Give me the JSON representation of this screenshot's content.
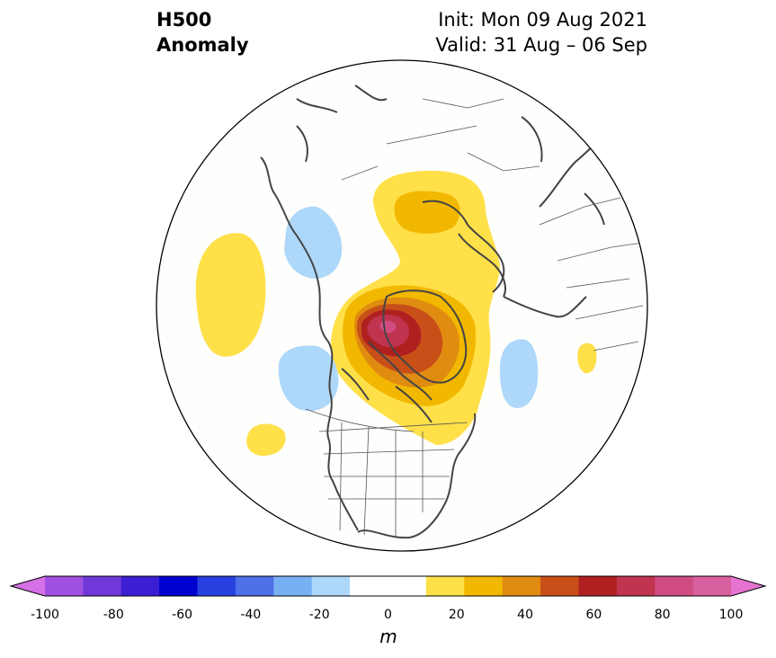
{
  "title": {
    "left_line1": "H500",
    "left_line2": "Anomaly",
    "right_line1": "Init: Mon 09 Aug 2021",
    "right_line2": "Valid: 31 Aug – 06 Sep"
  },
  "map": {
    "projection": "north-polar-stereographic",
    "variable": "500 hPa geopotential height anomaly",
    "features": [
      "coastlines",
      "country borders",
      "US state borders"
    ]
  },
  "colorbar": {
    "unit": "m",
    "levels": [
      -100,
      -90,
      -80,
      -70,
      -60,
      -50,
      -40,
      -30,
      -20,
      -10,
      10,
      20,
      30,
      40,
      50,
      60,
      70,
      80,
      90,
      100
    ],
    "colors": [
      "#d670e6",
      "#a050e0",
      "#7038d8",
      "#3c1ed4",
      "#0000d0",
      "#2840e0",
      "#4e70e8",
      "#78b0f4",
      "#aed8fa",
      "#ffffff",
      "#ffffff",
      "#ffe048",
      "#f2b800",
      "#e08c10",
      "#c85018",
      "#b02020",
      "#c03450",
      "#d04c80",
      "#d8609e",
      "#e474d0"
    ],
    "ticks": [
      "-100",
      "-80",
      "-60",
      "-40",
      "-20",
      "0",
      "20",
      "40",
      "60",
      "80",
      "100"
    ],
    "extend": "both"
  }
}
